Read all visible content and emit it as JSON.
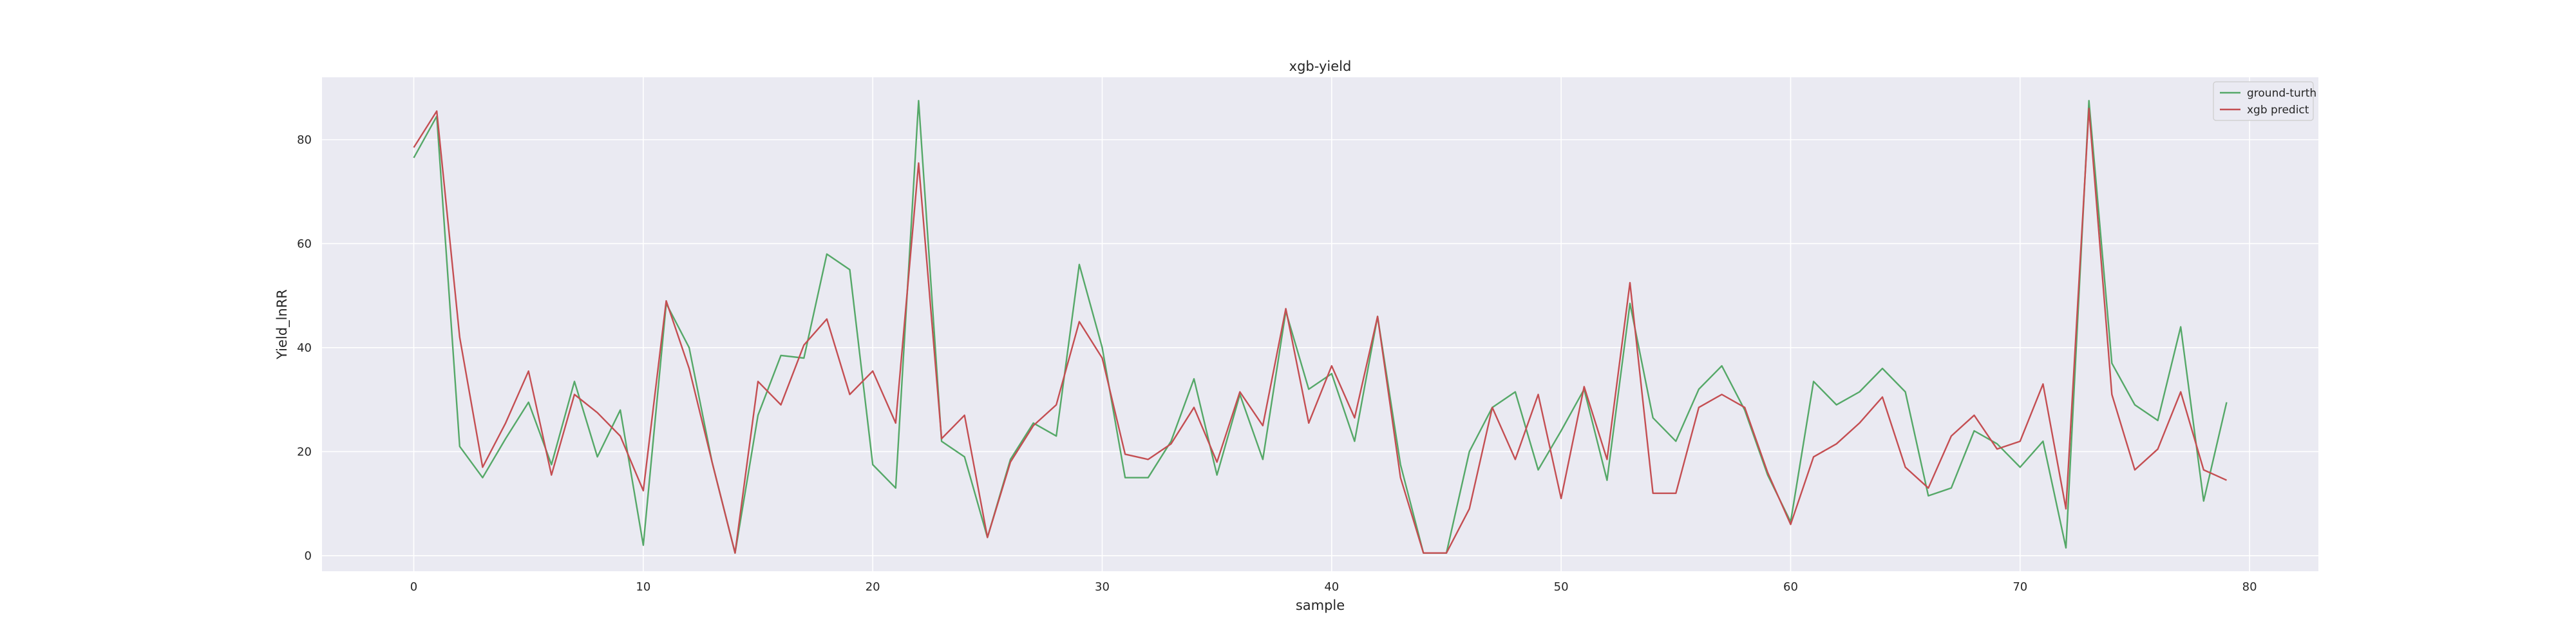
{
  "chart_data": {
    "type": "line",
    "title": "xgb-yield",
    "xlabel": "sample",
    "ylabel": "Yield_lnRR",
    "xlim": [
      -4,
      83
    ],
    "ylim": [
      -3,
      92
    ],
    "xticks": [
      0,
      10,
      20,
      30,
      40,
      50,
      60,
      70,
      80
    ],
    "yticks": [
      0,
      20,
      40,
      60,
      80
    ],
    "grid": true,
    "legend_position": "top-right",
    "x": [
      0,
      1,
      2,
      3,
      4,
      5,
      6,
      7,
      8,
      9,
      10,
      11,
      12,
      13,
      14,
      15,
      16,
      17,
      18,
      19,
      20,
      21,
      22,
      23,
      24,
      25,
      26,
      27,
      28,
      29,
      30,
      31,
      32,
      33,
      34,
      35,
      36,
      37,
      38,
      39,
      40,
      41,
      42,
      43,
      44,
      45,
      46,
      47,
      48,
      49,
      50,
      51,
      52,
      53,
      54,
      55,
      56,
      57,
      58,
      59,
      60,
      61,
      62,
      63,
      64,
      65,
      66,
      67,
      68,
      69,
      70,
      71,
      72,
      73,
      74,
      75,
      76,
      77,
      78,
      79
    ],
    "series": [
      {
        "name": "ground-turth",
        "color": "#55a868",
        "values": [
          76.5,
          84.5,
          21,
          15,
          22.5,
          29.5,
          17.5,
          33.5,
          19,
          28,
          2,
          48.5,
          40,
          18,
          0.5,
          27,
          38.5,
          38,
          58,
          55,
          17.5,
          13,
          87.5,
          22,
          19,
          3.5,
          18.5,
          25.5,
          23,
          56,
          40,
          15,
          15,
          22,
          34,
          15.5,
          31,
          18.5,
          47,
          32,
          35,
          22,
          46,
          17.5,
          0.5,
          0.5,
          20,
          28.5,
          31.5,
          16.5,
          24,
          32,
          14.5,
          48.5,
          26.5,
          22,
          32,
          36.5,
          28,
          15.5,
          6.5,
          33.5,
          29,
          31.5,
          36,
          31.5,
          11.5,
          13,
          24,
          21.5,
          17,
          22,
          1.5,
          87.5,
          37,
          29,
          26,
          44,
          10.5,
          29.5
        ]
      },
      {
        "name": "xgb predict",
        "color": "#c44e52",
        "values": [
          78.5,
          85.5,
          42,
          17,
          25.5,
          35.5,
          15.5,
          31,
          27.5,
          23,
          12.5,
          49,
          36,
          18,
          0.5,
          33.5,
          29,
          40.5,
          45.5,
          31,
          35.5,
          25.5,
          75.5,
          22.5,
          27,
          3.5,
          18,
          25,
          29,
          45,
          38,
          19.5,
          18.5,
          21.5,
          28.5,
          18,
          31.5,
          25,
          47.5,
          25.5,
          36.5,
          26.5,
          46,
          15,
          0.5,
          0.5,
          9,
          28.5,
          18.5,
          31,
          11,
          32.5,
          18.5,
          52.5,
          12,
          12,
          28.5,
          31,
          28.5,
          16,
          6,
          19,
          21.5,
          25.5,
          30.5,
          17,
          13,
          23,
          27,
          20.5,
          22,
          33,
          9,
          86,
          31,
          16.5,
          20.5,
          31.5,
          16.5,
          14.5
        ]
      }
    ]
  }
}
